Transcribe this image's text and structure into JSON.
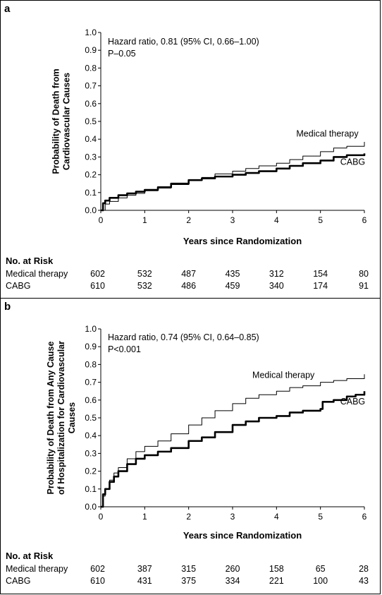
{
  "chart_data": [
    {
      "panel_label": "a",
      "type": "line",
      "ylabel_lines": [
        "Probability of Death from",
        "Cardiovascular Causes"
      ],
      "xlabel": "Years since Randomization",
      "xlim": [
        0,
        6
      ],
      "ylim": [
        0,
        1
      ],
      "xticks": [
        "0",
        "1",
        "2",
        "3",
        "4",
        "5",
        "6"
      ],
      "yticks": [
        "0.0",
        "0.1",
        "0.2",
        "0.3",
        "0.4",
        "0.5",
        "0.6",
        "0.7",
        "0.8",
        "0.9",
        "1.0"
      ],
      "annotation_lines": [
        "Hazard ratio, 0.81 (95% CI, 0.66–1.00)",
        "P–0.05"
      ],
      "series": [
        {
          "name": "Medical therapy",
          "style": "thin",
          "x": [
            0,
            0.1,
            0.2,
            0.4,
            0.6,
            0.8,
            1.0,
            1.3,
            1.6,
            2.0,
            2.3,
            2.6,
            3.0,
            3.3,
            3.6,
            4.0,
            4.3,
            4.6,
            5.0,
            5.3,
            5.6,
            6.0
          ],
          "y": [
            0,
            0.035,
            0.05,
            0.07,
            0.085,
            0.095,
            0.11,
            0.125,
            0.145,
            0.17,
            0.185,
            0.205,
            0.22,
            0.235,
            0.25,
            0.265,
            0.285,
            0.305,
            0.33,
            0.35,
            0.36,
            0.385
          ]
        },
        {
          "name": "CABG",
          "style": "thick",
          "x": [
            0,
            0.05,
            0.1,
            0.2,
            0.4,
            0.6,
            0.8,
            1.0,
            1.3,
            1.6,
            2.0,
            2.3,
            2.6,
            3.0,
            3.3,
            3.6,
            4.0,
            4.3,
            4.6,
            5.0,
            5.3,
            5.6,
            6.0
          ],
          "y": [
            0,
            0.04,
            0.055,
            0.07,
            0.085,
            0.095,
            0.105,
            0.115,
            0.13,
            0.15,
            0.17,
            0.18,
            0.19,
            0.2,
            0.21,
            0.22,
            0.235,
            0.25,
            0.265,
            0.28,
            0.3,
            0.31,
            0.32
          ]
        }
      ],
      "labels": [
        {
          "text": "Medical therapy",
          "x": 4.45,
          "y": 0.415
        },
        {
          "text": "CABG",
          "x": 5.45,
          "y": 0.255
        }
      ],
      "risk_table": {
        "title": "No. at Risk",
        "rows": [
          {
            "label": "Medical therapy",
            "values": [
              "602",
              "532",
              "487",
              "435",
              "312",
              "154",
              "80"
            ]
          },
          {
            "label": "CABG",
            "values": [
              "610",
              "532",
              "486",
              "459",
              "340",
              "174",
              "91"
            ]
          }
        ]
      }
    },
    {
      "panel_label": "b",
      "type": "line",
      "ylabel_lines": [
        "Probability of Death from Any Cause",
        "of Hospitalization for Cardiovascular",
        "Causes"
      ],
      "xlabel": "Years since Randomization",
      "xlim": [
        0,
        6
      ],
      "ylim": [
        0,
        1
      ],
      "xticks": [
        "0",
        "1",
        "2",
        "3",
        "4",
        "5",
        "6"
      ],
      "yticks": [
        "0.0",
        "0.1",
        "0.2",
        "0.3",
        "0.4",
        "0.5",
        "0.6",
        "0.7",
        "0.8",
        "0.9",
        "1.0"
      ],
      "annotation_lines": [
        "Hazard ratio, 0.74 (95% CI, 0.64–0.85)",
        "P<0.001"
      ],
      "series": [
        {
          "name": "Medical therapy",
          "style": "thin",
          "x": [
            0,
            0.05,
            0.1,
            0.2,
            0.3,
            0.4,
            0.6,
            0.8,
            1.0,
            1.3,
            1.6,
            2.0,
            2.3,
            2.6,
            3.0,
            3.3,
            3.6,
            4.0,
            4.3,
            4.6,
            5.0,
            5.3,
            5.6,
            6.0
          ],
          "y": [
            0,
            0.06,
            0.1,
            0.15,
            0.19,
            0.22,
            0.27,
            0.31,
            0.34,
            0.37,
            0.41,
            0.46,
            0.5,
            0.54,
            0.58,
            0.61,
            0.63,
            0.65,
            0.67,
            0.68,
            0.7,
            0.71,
            0.72,
            0.745
          ]
        },
        {
          "name": "CABG",
          "style": "thick",
          "x": [
            0,
            0.05,
            0.1,
            0.2,
            0.3,
            0.4,
            0.6,
            0.8,
            1.0,
            1.3,
            1.6,
            2.0,
            2.3,
            2.6,
            3.0,
            3.3,
            3.6,
            4.0,
            4.3,
            4.6,
            5.0,
            5.05,
            5.3,
            5.6,
            5.8,
            6.0
          ],
          "y": [
            0,
            0.07,
            0.1,
            0.14,
            0.17,
            0.2,
            0.24,
            0.27,
            0.29,
            0.31,
            0.33,
            0.37,
            0.39,
            0.42,
            0.46,
            0.48,
            0.5,
            0.51,
            0.53,
            0.54,
            0.55,
            0.59,
            0.6,
            0.62,
            0.63,
            0.65
          ]
        }
      ],
      "labels": [
        {
          "text": "Medical therapy",
          "x": 3.45,
          "y": 0.725
        },
        {
          "text": "CABG",
          "x": 5.45,
          "y": 0.575
        }
      ],
      "risk_table": {
        "title": "No. at Risk",
        "rows": [
          {
            "label": "Medical therapy",
            "values": [
              "602",
              "387",
              "315",
              "260",
              "158",
              "65",
              "28"
            ]
          },
          {
            "label": "CABG",
            "values": [
              "610",
              "431",
              "375",
              "334",
              "221",
              "100",
              "43"
            ]
          }
        ]
      }
    }
  ]
}
